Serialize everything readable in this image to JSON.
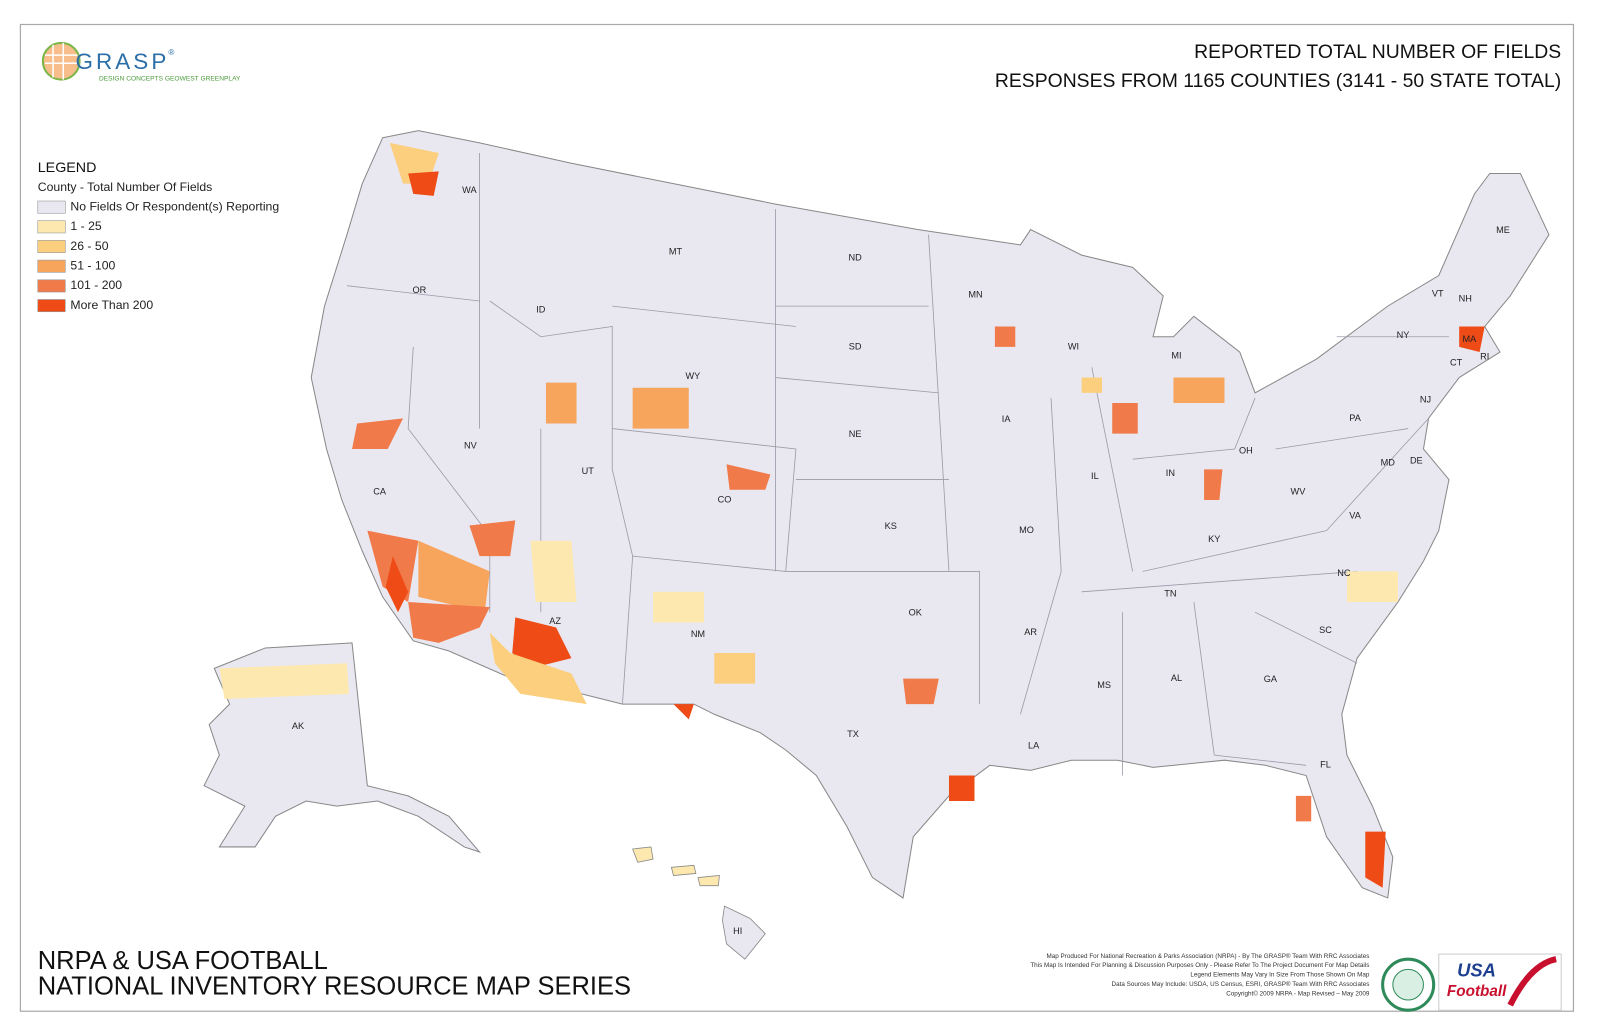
{
  "header": {
    "title_lines": [
      "REPORTED TOTAL NUMBER OF FIELDS",
      "RESPONSES FROM 1165 COUNTIES (3141 - 50 STATE TOTAL)"
    ]
  },
  "logo": {
    "name": "GRASP",
    "mark": "®",
    "tagline": "DESIGN CONCEPTS  GEOWEST  GREENPLAY"
  },
  "legend": {
    "title": "LEGEND",
    "subtitle": "County - Total Number Of Fields",
    "items": [
      {
        "label": "No Fields Or Respondent(s) Reporting",
        "color": "#e9e8f1"
      },
      {
        "label": "1 - 25",
        "color": "#fde9b0"
      },
      {
        "label": "26 - 50",
        "color": "#fbcf7e"
      },
      {
        "label": "51 - 100",
        "color": "#f7a45c"
      },
      {
        "label": "101 - 200",
        "color": "#f07a4a"
      },
      {
        "label": "More Than 200",
        "color": "#ee4b16"
      }
    ]
  },
  "state_labels": [
    "WA",
    "OR",
    "CA",
    "NV",
    "ID",
    "MT",
    "WY",
    "UT",
    "CO",
    "AZ",
    "NM",
    "ND",
    "SD",
    "NE",
    "KS",
    "OK",
    "TX",
    "MN",
    "IA",
    "MO",
    "AR",
    "LA",
    "WI",
    "IL",
    "MS",
    "MI",
    "IN",
    "OH",
    "KY",
    "TN",
    "AL",
    "GA",
    "FL",
    "SC",
    "NC",
    "VA",
    "WV",
    "PA",
    "NY",
    "VT",
    "NH",
    "ME",
    "MA",
    "RI",
    "CT",
    "NJ",
    "DE",
    "MD",
    "AK",
    "HI"
  ],
  "footer": {
    "title_lines": [
      "NRPA & USA FOOTBALL",
      "NATIONAL INVENTORY RESOURCE MAP SERIES"
    ],
    "credits": [
      "Map Produced For National Recreation & Parks Association (NRPA) - By The GRASP® Team With RRC Associates",
      "This Map Is Intended For Planning & Discussion Purposes Only - Please Refer To The Project Document For Map Details",
      "Legend Elements May Vary In Size From Those Shown On Map",
      "Data Sources May Include: USDA, US Census, ESRI, GRASP® Team With RRC Associates",
      "Copyright© 2009 NRPA - Map Revised – May 2009"
    ],
    "partner_logo": [
      "USA",
      "Football"
    ]
  }
}
